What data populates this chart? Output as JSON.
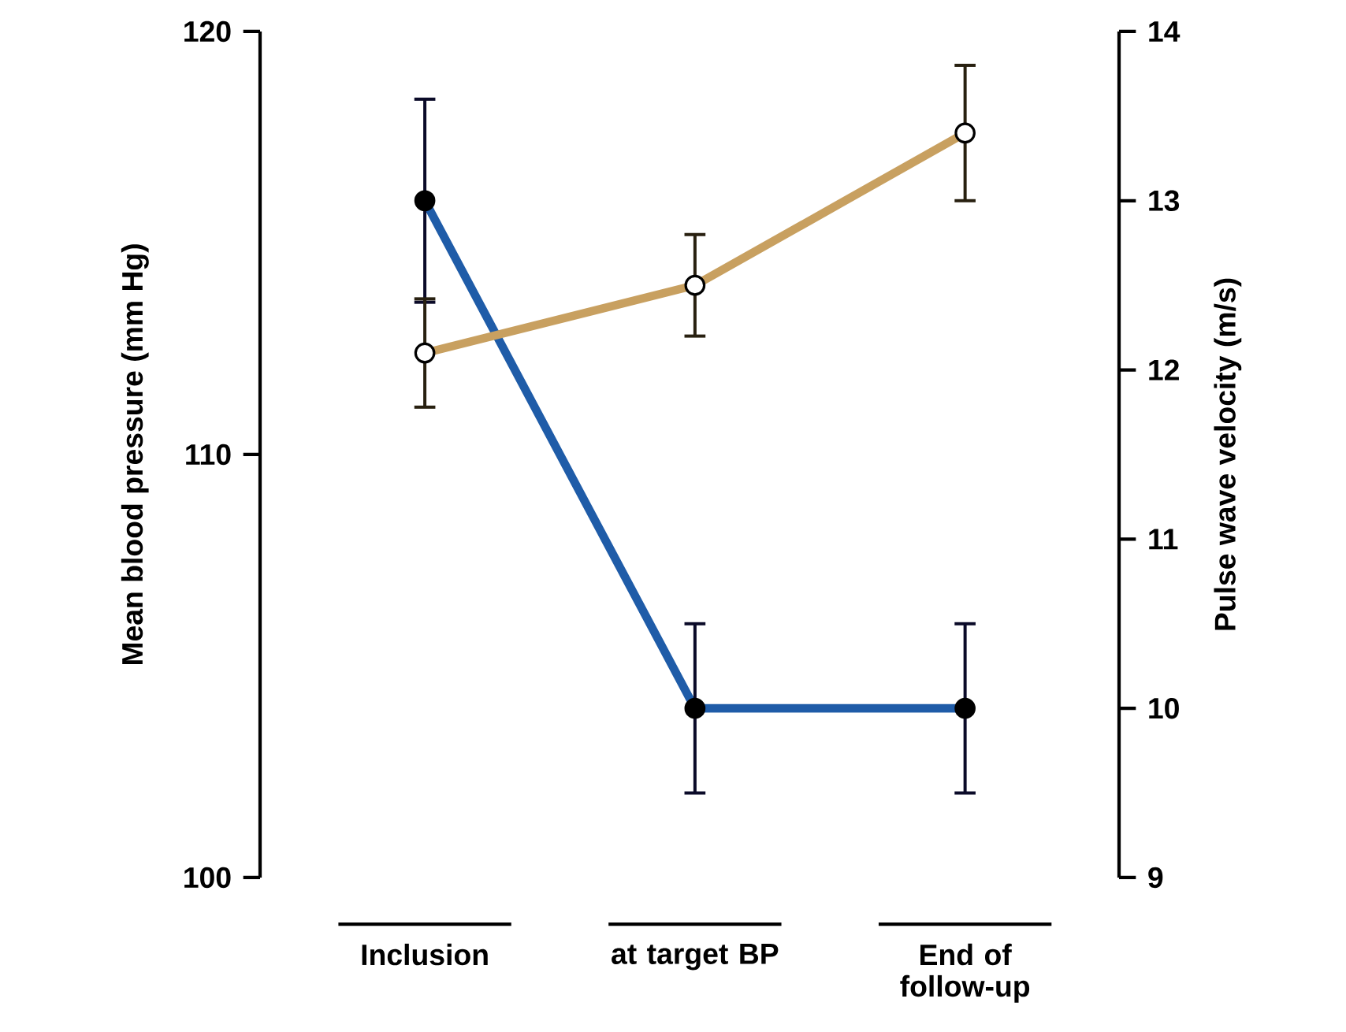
{
  "chart_data": {
    "type": "line",
    "ylabel": "Mean blood pressure (mm Hg)",
    "y2label": "Pulse wave velocity (m/s)",
    "categories": [
      "Inclusion",
      "at target BP",
      "End of follow-up"
    ],
    "series": [
      {
        "color": "#1f5ca8",
        "values": [
          116,
          104,
          104
        ],
        "errors": [
          2.4,
          2,
          2
        ]
      },
      {
        "color": "#c8a060",
        "axis": "y2",
        "values": [
          12.1,
          12.5,
          13.4
        ],
        "errors": [
          0.32,
          0.3,
          0.4
        ]
      }
    ],
    "ylim": [
      100,
      120
    ],
    "yticks": [
      100,
      110,
      120
    ],
    "y2lim": [
      9,
      14
    ],
    "y2ticks": [
      9,
      10,
      11,
      12,
      13,
      14
    ],
    "marker": "circle",
    "grid": false
  }
}
